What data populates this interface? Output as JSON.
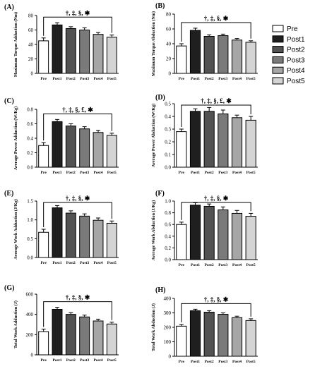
{
  "legend": {
    "placement": "right",
    "entries": [
      {
        "name": "Pre",
        "color": "#ffffff"
      },
      {
        "name": "Post1",
        "color": "#1f1f1f"
      },
      {
        "name": "Post2",
        "color": "#525252"
      },
      {
        "name": "Post3",
        "color": "#7a7a7a"
      },
      {
        "name": "Post4",
        "color": "#a6a6a6"
      },
      {
        "name": "Post5",
        "color": "#d4d4d4"
      }
    ]
  },
  "chart_data": [
    {
      "panel": "(A)",
      "type": "bar",
      "ylabel": "Maximum Torque Adduction (Nm)",
      "categories": [
        "Pre",
        "Post1",
        "Post2",
        "Post3",
        "Post4",
        "Post5"
      ],
      "values": [
        45,
        67,
        62,
        60,
        54,
        50
      ],
      "errors": [
        4,
        3,
        2.5,
        3,
        2.5,
        3
      ],
      "ylim": [
        0,
        80
      ],
      "yticks": [
        "0",
        "20",
        "40",
        "60",
        "80"
      ],
      "significance": "†, ‡, §, ✱",
      "bracket_from": "Pre",
      "bracket_to": "Post5",
      "grid": false
    },
    {
      "panel": "(B)",
      "type": "bar",
      "ylabel": "Maximum Torque Abduction (Nm)",
      "categories": [
        "Pre",
        "Post1",
        "Post2",
        "Post3",
        "Post4",
        "Post5"
      ],
      "values": [
        37,
        58,
        50,
        51,
        45,
        42
      ],
      "errors": [
        3,
        3,
        2,
        2,
        2,
        2
      ],
      "ylim": [
        0,
        80
      ],
      "yticks": [
        "0",
        "20",
        "40",
        "60",
        "80"
      ],
      "significance": "†, ‡, §, ✱",
      "bracket_from": "Pre",
      "bracket_to": "Post5",
      "grid": false
    },
    {
      "panel": "(C)",
      "type": "bar",
      "ylabel": "Average Power Adduction (W/Kg)",
      "categories": [
        "Pre",
        "Post1",
        "Post2",
        "Post3",
        "Post4",
        "Post5"
      ],
      "values": [
        0.3,
        0.63,
        0.57,
        0.53,
        0.48,
        0.44
      ],
      "errors": [
        0.04,
        0.03,
        0.03,
        0.03,
        0.03,
        0.03
      ],
      "ylim": [
        0,
        0.8
      ],
      "yticks": [
        "0.0",
        "0.2",
        "0.4",
        "0.6",
        "0.8"
      ],
      "significance": "†, ‡, §, £, ✱",
      "bracket_from": "Pre",
      "bracket_to": "Post5",
      "grid": false
    },
    {
      "panel": "(D)",
      "type": "bar",
      "ylabel": "Average Power Abduction (W/Kg)",
      "categories": [
        "Pre",
        "Post1",
        "Post2",
        "Post3",
        "Post4",
        "Post5"
      ],
      "values": [
        0.28,
        0.44,
        0.44,
        0.42,
        0.39,
        0.37
      ],
      "errors": [
        0.02,
        0.02,
        0.03,
        0.03,
        0.02,
        0.03
      ],
      "ylim": [
        0,
        0.5
      ],
      "yticks": [
        "0.0",
        "0.1",
        "0.2",
        "0.3",
        "0.4",
        "0.5"
      ],
      "significance": "†, ‡, §, £, ✱",
      "bracket_from": "Pre",
      "bracket_to": "Post5",
      "grid": false
    },
    {
      "panel": "(E)",
      "type": "bar",
      "ylabel": "Average Work Adduction (J/Kg)",
      "categories": [
        "Pre",
        "Post1",
        "Post2",
        "Post3",
        "Post4",
        "Post5"
      ],
      "values": [
        0.67,
        1.32,
        1.18,
        1.1,
        0.99,
        0.91
      ],
      "errors": [
        0.08,
        0.06,
        0.06,
        0.06,
        0.06,
        0.06
      ],
      "ylim": [
        0,
        1.5
      ],
      "yticks": [
        "0.0",
        "0.5",
        "1.0",
        "1.5"
      ],
      "significance": "†, ‡, §, ✱",
      "bracket_from": "Pre",
      "bracket_to": "Post5",
      "grid": false
    },
    {
      "panel": "(F)",
      "type": "bar",
      "ylabel": "Average Work Abduction (J/Kg)",
      "categories": [
        "Pre",
        "Post1",
        "Post2",
        "Post3",
        "Post4",
        "Post5"
      ],
      "values": [
        0.6,
        0.93,
        0.91,
        0.85,
        0.79,
        0.74
      ],
      "errors": [
        0.04,
        0.04,
        0.04,
        0.05,
        0.05,
        0.05
      ],
      "ylim": [
        0,
        1.0
      ],
      "yticks": [
        "0.0",
        "0.2",
        "0.4",
        "0.6",
        "0.8",
        "1.0"
      ],
      "significance": "†, ‡, §, ✱",
      "bracket_from": "Pre",
      "bracket_to": "Post5",
      "grid": false
    },
    {
      "panel": "(G)",
      "type": "bar",
      "ylabel": "Total Work Adduction (J)",
      "categories": [
        "Pre",
        "Post1",
        "Post2",
        "Post3",
        "Post4",
        "Post5"
      ],
      "values": [
        230,
        450,
        400,
        375,
        335,
        305
      ],
      "errors": [
        25,
        20,
        18,
        18,
        18,
        18
      ],
      "ylim": [
        0,
        600
      ],
      "yticks": [
        "0",
        "200",
        "400",
        "600"
      ],
      "significance": "†, ‡, §, ✱",
      "bracket_from": "Pre",
      "bracket_to": "Post5",
      "grid": false
    },
    {
      "panel": "(H)",
      "type": "bar",
      "ylabel": "Total Work Abduction (J)",
      "categories": [
        "Pre",
        "Post1",
        "Post2",
        "Post3",
        "Post4",
        "Post5"
      ],
      "values": [
        208,
        315,
        305,
        290,
        267,
        247
      ],
      "errors": [
        12,
        10,
        10,
        10,
        10,
        12
      ],
      "ylim": [
        0,
        400
      ],
      "yticks": [
        "0",
        "100",
        "200",
        "300",
        "400"
      ],
      "significance": "†, ‡, §, ✱",
      "bracket_from": "Pre",
      "bracket_to": "Post5",
      "grid": false
    }
  ]
}
